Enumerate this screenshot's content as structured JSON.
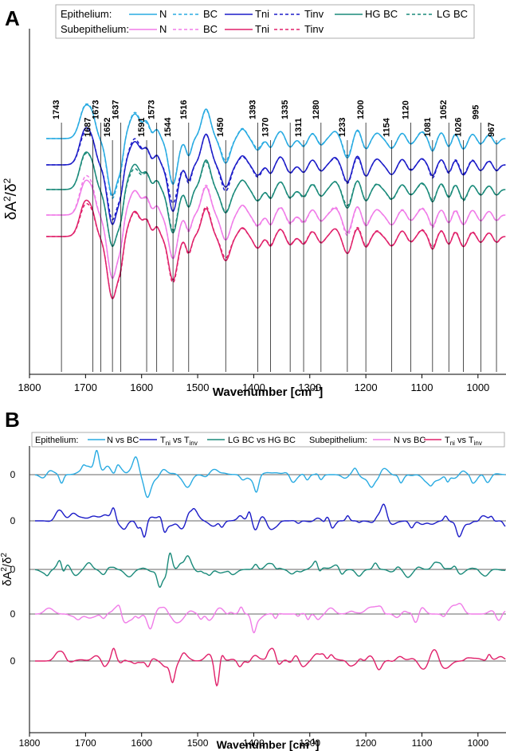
{
  "panels": {
    "a": "A",
    "b": "B"
  },
  "chart_data": [
    {
      "type": "line",
      "panel": "A",
      "title": "",
      "xlabel": "Wavenumber [cm⁻¹]",
      "xlabel_base": "Wavenumber [cm",
      "xlabel_sup": "-1",
      "xlabel_end": "]",
      "ylabel": "δA²/δ²",
      "ylabel_base": "δA",
      "ylabel_mid": "/δ",
      "ylabel_sup": "2",
      "x_axis": "reversed",
      "xlim": [
        1800,
        950
      ],
      "xticks": [
        1800,
        1700,
        1600,
        1500,
        1400,
        1300,
        1200,
        1100,
        1000
      ],
      "grid": false,
      "legend_position": "top",
      "legend": {
        "groups": [
          {
            "label": "Epithelium:",
            "entries": [
              {
                "label": "N",
                "color": "#29abe2",
                "dash": "solid"
              },
              {
                "label": "BC",
                "color": "#29abe2",
                "dash": "dashed"
              },
              {
                "label": "Tni",
                "color": "#1c1cc8",
                "dash": "solid"
              },
              {
                "label": "Tinv",
                "color": "#1c1cc8",
                "dash": "dashed"
              },
              {
                "label": "HG BC",
                "color": "#1a8a7a",
                "dash": "solid"
              },
              {
                "label": "LG BC",
                "color": "#1a8a7a",
                "dash": "dashed"
              }
            ]
          },
          {
            "label": "Subepithelium:",
            "entries": [
              {
                "label": "N",
                "color": "#f07ce8",
                "dash": "solid"
              },
              {
                "label": "BC",
                "color": "#f07ce8",
                "dash": "dashed"
              },
              {
                "label": "Tni",
                "color": "#e0206a",
                "dash": "solid"
              },
              {
                "label": "Tinv",
                "color": "#e0206a",
                "dash": "dashed"
              }
            ]
          }
        ]
      },
      "peak_labels": [
        1743,
        1687,
        1673,
        1652,
        1637,
        1591,
        1573,
        1544,
        1516,
        1450,
        1393,
        1370,
        1335,
        1311,
        1280,
        1233,
        1200,
        1154,
        1120,
        1081,
        1052,
        1026,
        995,
        967
      ],
      "series": [
        {
          "name": "Epithelium N",
          "color": "#29abe2",
          "dash": "solid",
          "offset": 4.6
        },
        {
          "name": "Epithelium BC",
          "color": "#29abe2",
          "dash": "dashed",
          "offset": 4.6
        },
        {
          "name": "Epithelium Tni",
          "color": "#1c1cc8",
          "dash": "solid",
          "offset": 3.45
        },
        {
          "name": "Epithelium Tinv",
          "color": "#1c1cc8",
          "dash": "dashed",
          "offset": 3.45
        },
        {
          "name": "Epithelium HG BC",
          "color": "#1a8a7a",
          "dash": "solid",
          "offset": 2.35
        },
        {
          "name": "Epithelium LG BC",
          "color": "#1a8a7a",
          "dash": "dashed",
          "offset": 2.35
        },
        {
          "name": "Subepithelium N",
          "color": "#f07ce8",
          "dash": "solid",
          "offset": 1.2
        },
        {
          "name": "Subepithelium BC",
          "color": "#f07ce8",
          "dash": "dashed",
          "offset": 1.2
        },
        {
          "name": "Subepithelium Tni",
          "color": "#e0206a",
          "dash": "solid",
          "offset": 0
        },
        {
          "name": "Subepithelium Tinv",
          "color": "#e0206a",
          "dash": "dashed",
          "offset": 0
        }
      ]
    },
    {
      "type": "line",
      "panel": "B",
      "title": "",
      "xlabel": "Wavenumber [cm⁻¹]",
      "xlabel_base": "Wavenumber [cm",
      "xlabel_sup": "-1",
      "xlabel_end": "]",
      "ylabel": "δA²/δ²",
      "ylabel_base": "δA",
      "ylabel_mid": "/δ",
      "ylabel_sup": "2",
      "x_axis": "reversed",
      "xlim": [
        1800,
        950
      ],
      "xticks": [
        1800,
        1700,
        1600,
        1500,
        1400,
        1300,
        1200,
        1100,
        1000
      ],
      "zero_label": "0",
      "grid": false,
      "legend_position": "top",
      "legend": {
        "groups": [
          {
            "label": "Epithelium:",
            "entries": [
              {
                "label": "N vs BC",
                "color": "#29abe2"
              },
              {
                "label": "Tni vs Tinv",
                "color": "#1c1cc8",
                "a": "T",
                "a_sub": "ni",
                "b": " vs T",
                "b_sub": "inv"
              },
              {
                "label": "LG BC vs HG BC",
                "color": "#1a8a7a"
              }
            ]
          },
          {
            "label": "Subepithelium:",
            "entries": [
              {
                "label": "N vs BC",
                "color": "#f07ce8"
              },
              {
                "label": "Tni vs Tinv",
                "color": "#e0206a",
                "a": "T",
                "a_sub": "ni",
                "b": " vs T",
                "b_sub": "inv"
              }
            ]
          }
        ]
      },
      "series": [
        {
          "name": "Epithelium N vs BC",
          "color": "#29abe2"
        },
        {
          "name": "Epithelium Tni vs Tinv",
          "color": "#1c1cc8"
        },
        {
          "name": "Epithelium LG BC vs HG BC",
          "color": "#1a8a7a"
        },
        {
          "name": "Subepithelium N vs BC",
          "color": "#f07ce8"
        },
        {
          "name": "Subepithelium Tni vs Tinv",
          "color": "#e0206a"
        }
      ]
    }
  ]
}
